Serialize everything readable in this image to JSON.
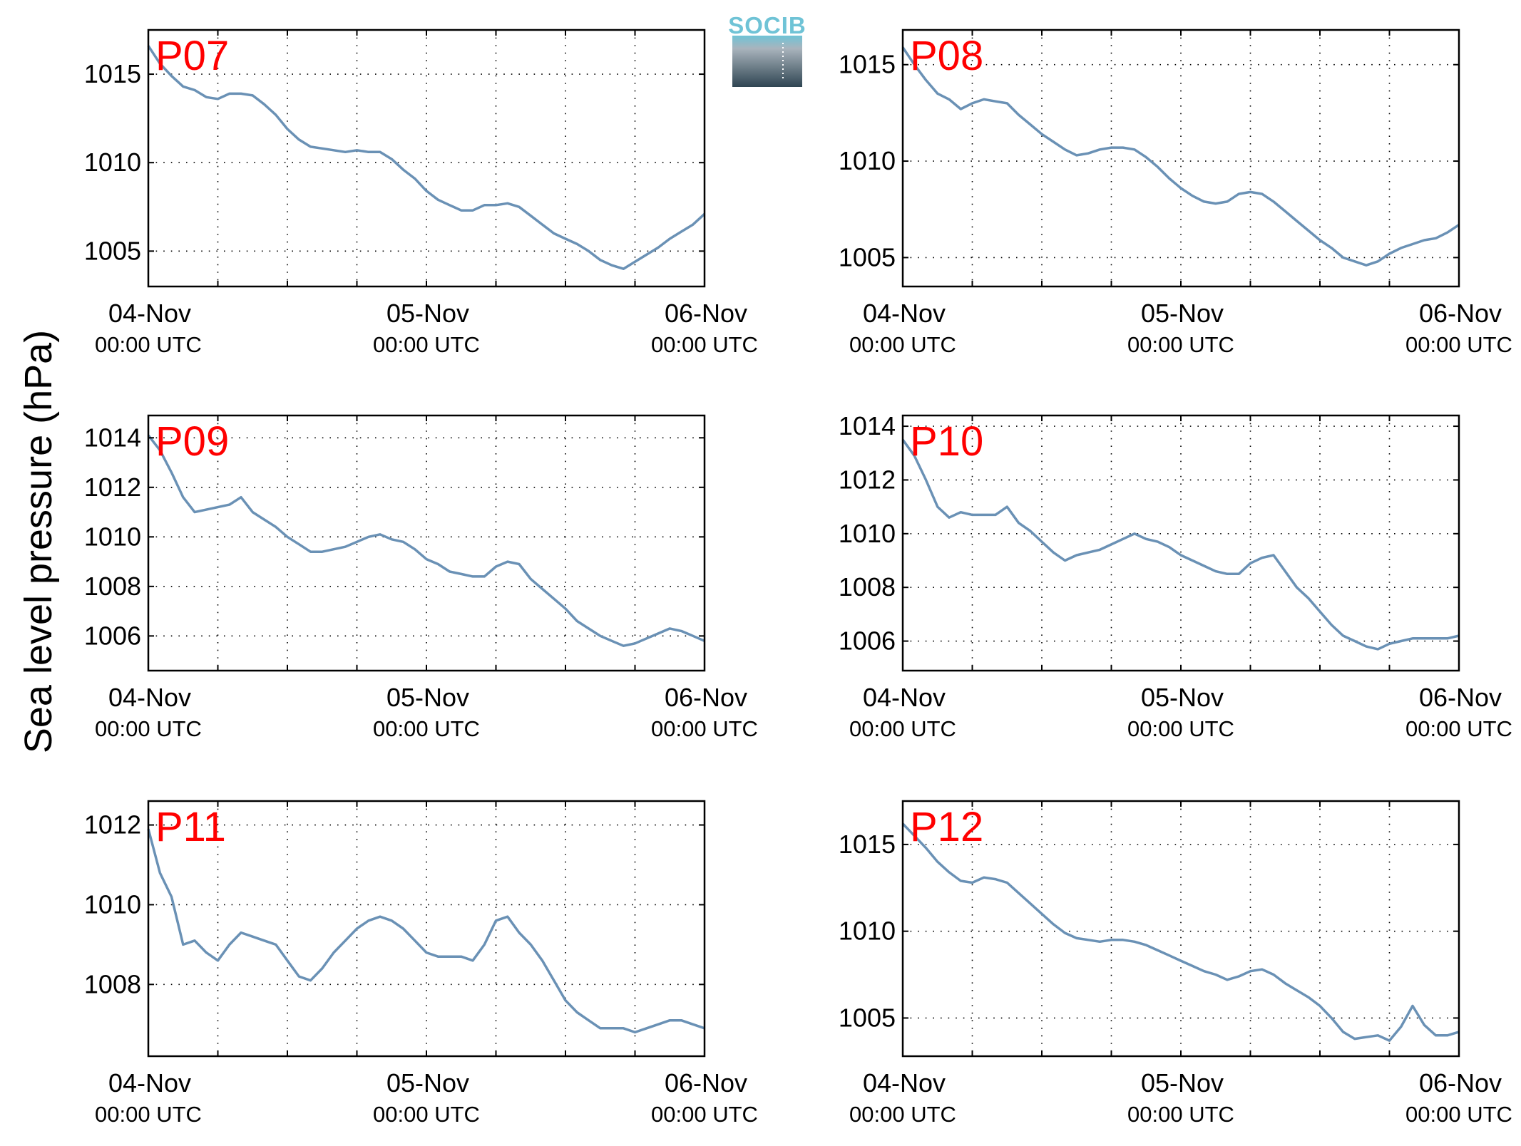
{
  "figure": {
    "ylabel": "Sea level pressure (hPa)",
    "logo_text": "SOCIB",
    "colors": {
      "line": "#6a91b5",
      "panel_label": "#ff0000",
      "axes": "#000000",
      "grid": "#000000"
    }
  },
  "chart_data": [
    {
      "type": "line",
      "title": "P07",
      "x_ticks": [
        {
          "main": "04-Nov",
          "sub": "00:00 UTC"
        },
        {
          "main": "05-Nov",
          "sub": "00:00 UTC"
        },
        {
          "main": "06-Nov",
          "sub": "00:00 UTC"
        }
      ],
      "xlim": [
        0,
        48
      ],
      "ylim": [
        1003,
        1017.5
      ],
      "yticks": [
        1005,
        1010,
        1015
      ],
      "grid": true,
      "x": [
        0,
        1,
        2,
        3,
        4,
        5,
        6,
        7,
        8,
        9,
        10,
        11,
        12,
        13,
        14,
        15,
        16,
        17,
        18,
        19,
        20,
        21,
        22,
        23,
        24,
        25,
        26,
        27,
        28,
        29,
        30,
        31,
        32,
        33,
        34,
        35,
        36,
        37,
        38,
        39,
        40,
        41,
        42,
        43,
        44,
        45,
        46,
        47,
        48
      ],
      "values": [
        1016.6,
        1015.6,
        1014.9,
        1014.3,
        1014.1,
        1013.7,
        1013.6,
        1013.9,
        1013.9,
        1013.8,
        1013.3,
        1012.7,
        1011.9,
        1011.3,
        1010.9,
        1010.8,
        1010.7,
        1010.6,
        1010.7,
        1010.6,
        1010.6,
        1010.2,
        1009.6,
        1009.1,
        1008.4,
        1007.9,
        1007.6,
        1007.3,
        1007.3,
        1007.6,
        1007.6,
        1007.7,
        1007.5,
        1007.0,
        1006.5,
        1006.0,
        1005.7,
        1005.4,
        1005.0,
        1004.5,
        1004.2,
        1004.0,
        1004.4,
        1004.8,
        1005.2,
        1005.7,
        1006.1,
        1006.5,
        1007.1
      ]
    },
    {
      "type": "line",
      "title": "P08",
      "x_ticks": [
        {
          "main": "04-Nov",
          "sub": "00:00 UTC"
        },
        {
          "main": "05-Nov",
          "sub": "00:00 UTC"
        },
        {
          "main": "06-Nov",
          "sub": "00:00 UTC"
        }
      ],
      "xlim": [
        0,
        48
      ],
      "ylim": [
        1003.5,
        1016.8
      ],
      "yticks": [
        1005,
        1010,
        1015
      ],
      "grid": true,
      "x": [
        0,
        1,
        2,
        3,
        4,
        5,
        6,
        7,
        8,
        9,
        10,
        11,
        12,
        13,
        14,
        15,
        16,
        17,
        18,
        19,
        20,
        21,
        22,
        23,
        24,
        25,
        26,
        27,
        28,
        29,
        30,
        31,
        32,
        33,
        34,
        35,
        36,
        37,
        38,
        39,
        40,
        41,
        42,
        43,
        44,
        45,
        46,
        47,
        48
      ],
      "values": [
        1015.9,
        1015.0,
        1014.2,
        1013.5,
        1013.2,
        1012.7,
        1013.0,
        1013.2,
        1013.1,
        1013.0,
        1012.4,
        1011.9,
        1011.4,
        1011.0,
        1010.6,
        1010.3,
        1010.4,
        1010.6,
        1010.7,
        1010.7,
        1010.6,
        1010.2,
        1009.7,
        1009.1,
        1008.6,
        1008.2,
        1007.9,
        1007.8,
        1007.9,
        1008.3,
        1008.4,
        1008.3,
        1007.9,
        1007.4,
        1006.9,
        1006.4,
        1005.9,
        1005.5,
        1005.0,
        1004.8,
        1004.6,
        1004.8,
        1005.2,
        1005.5,
        1005.7,
        1005.9,
        1006.0,
        1006.3,
        1006.7
      ]
    },
    {
      "type": "line",
      "title": "P09",
      "x_ticks": [
        {
          "main": "04-Nov",
          "sub": "00:00 UTC"
        },
        {
          "main": "05-Nov",
          "sub": "00:00 UTC"
        },
        {
          "main": "06-Nov",
          "sub": "00:00 UTC"
        }
      ],
      "xlim": [
        0,
        48
      ],
      "ylim": [
        1004.6,
        1014.9
      ],
      "yticks": [
        1006,
        1008,
        1010,
        1012,
        1014
      ],
      "grid": true,
      "x": [
        0,
        1,
        2,
        3,
        4,
        5,
        6,
        7,
        8,
        9,
        10,
        11,
        12,
        13,
        14,
        15,
        16,
        17,
        18,
        19,
        20,
        21,
        22,
        23,
        24,
        25,
        26,
        27,
        28,
        29,
        30,
        31,
        32,
        33,
        34,
        35,
        36,
        37,
        38,
        39,
        40,
        41,
        42,
        43,
        44,
        45,
        46,
        47,
        48
      ],
      "values": [
        1014.1,
        1013.5,
        1012.6,
        1011.6,
        1011.0,
        1011.1,
        1011.2,
        1011.3,
        1011.6,
        1011.0,
        1010.7,
        1010.4,
        1010.0,
        1009.7,
        1009.4,
        1009.4,
        1009.5,
        1009.6,
        1009.8,
        1010.0,
        1010.1,
        1009.9,
        1009.8,
        1009.5,
        1009.1,
        1008.9,
        1008.6,
        1008.5,
        1008.4,
        1008.4,
        1008.8,
        1009.0,
        1008.9,
        1008.3,
        1007.9,
        1007.5,
        1007.1,
        1006.6,
        1006.3,
        1006.0,
        1005.8,
        1005.6,
        1005.7,
        1005.9,
        1006.1,
        1006.3,
        1006.2,
        1006.0,
        1005.8
      ]
    },
    {
      "type": "line",
      "title": "P10",
      "x_ticks": [
        {
          "main": "04-Nov",
          "sub": "00:00 UTC"
        },
        {
          "main": "05-Nov",
          "sub": "00:00 UTC"
        },
        {
          "main": "06-Nov",
          "sub": "00:00 UTC"
        }
      ],
      "xlim": [
        0,
        48
      ],
      "ylim": [
        1004.9,
        1014.4
      ],
      "yticks": [
        1006,
        1008,
        1010,
        1012,
        1014
      ],
      "grid": true,
      "x": [
        0,
        1,
        2,
        3,
        4,
        5,
        6,
        7,
        8,
        9,
        10,
        11,
        12,
        13,
        14,
        15,
        16,
        17,
        18,
        19,
        20,
        21,
        22,
        23,
        24,
        25,
        26,
        27,
        28,
        29,
        30,
        31,
        32,
        33,
        34,
        35,
        36,
        37,
        38,
        39,
        40,
        41,
        42,
        43,
        44,
        45,
        46,
        47,
        48
      ],
      "values": [
        1013.5,
        1012.9,
        1012.0,
        1011.0,
        1010.6,
        1010.8,
        1010.7,
        1010.7,
        1010.7,
        1011.0,
        1010.4,
        1010.1,
        1009.7,
        1009.3,
        1009.0,
        1009.2,
        1009.3,
        1009.4,
        1009.6,
        1009.8,
        1010.0,
        1009.8,
        1009.7,
        1009.5,
        1009.2,
        1009.0,
        1008.8,
        1008.6,
        1008.5,
        1008.5,
        1008.9,
        1009.1,
        1009.2,
        1008.6,
        1008.0,
        1007.6,
        1007.1,
        1006.6,
        1006.2,
        1006.0,
        1005.8,
        1005.7,
        1005.9,
        1006.0,
        1006.1,
        1006.1,
        1006.1,
        1006.1,
        1006.2
      ]
    },
    {
      "type": "line",
      "title": "P11",
      "x_ticks": [
        {
          "main": "04-Nov",
          "sub": "00:00 UTC"
        },
        {
          "main": "05-Nov",
          "sub": "00:00 UTC"
        },
        {
          "main": "06-Nov",
          "sub": "00:00 UTC"
        }
      ],
      "xlim": [
        0,
        48
      ],
      "ylim": [
        1006.2,
        1012.6
      ],
      "yticks": [
        1008,
        1010,
        1012
      ],
      "grid": true,
      "x": [
        0,
        1,
        2,
        3,
        4,
        5,
        6,
        7,
        8,
        9,
        10,
        11,
        12,
        13,
        14,
        15,
        16,
        17,
        18,
        19,
        20,
        21,
        22,
        23,
        24,
        25,
        26,
        27,
        28,
        29,
        30,
        31,
        32,
        33,
        34,
        35,
        36,
        37,
        38,
        39,
        40,
        41,
        42,
        43,
        44,
        45,
        46,
        47,
        48
      ],
      "values": [
        1011.9,
        1010.8,
        1010.2,
        1009.0,
        1009.1,
        1008.8,
        1008.6,
        1009.0,
        1009.3,
        1009.2,
        1009.1,
        1009.0,
        1008.6,
        1008.2,
        1008.1,
        1008.4,
        1008.8,
        1009.1,
        1009.4,
        1009.6,
        1009.7,
        1009.6,
        1009.4,
        1009.1,
        1008.8,
        1008.7,
        1008.7,
        1008.7,
        1008.6,
        1009.0,
        1009.6,
        1009.7,
        1009.3,
        1009.0,
        1008.6,
        1008.1,
        1007.6,
        1007.3,
        1007.1,
        1006.9,
        1006.9,
        1006.9,
        1006.8,
        1006.9,
        1007.0,
        1007.1,
        1007.1,
        1007.0,
        1006.9
      ]
    },
    {
      "type": "line",
      "title": "P12",
      "x_ticks": [
        {
          "main": "04-Nov",
          "sub": "00:00 UTC"
        },
        {
          "main": "05-Nov",
          "sub": "00:00 UTC"
        },
        {
          "main": "06-Nov",
          "sub": "00:00 UTC"
        }
      ],
      "xlim": [
        0,
        48
      ],
      "ylim": [
        1002.8,
        1017.5
      ],
      "yticks": [
        1005,
        1010,
        1015
      ],
      "grid": true,
      "x": [
        0,
        1,
        2,
        3,
        4,
        5,
        6,
        7,
        8,
        9,
        10,
        11,
        12,
        13,
        14,
        15,
        16,
        17,
        18,
        19,
        20,
        21,
        22,
        23,
        24,
        25,
        26,
        27,
        28,
        29,
        30,
        31,
        32,
        33,
        34,
        35,
        36,
        37,
        38,
        39,
        40,
        41,
        42,
        43,
        44,
        45,
        46,
        47,
        48
      ],
      "values": [
        1016.2,
        1015.5,
        1014.8,
        1014.0,
        1013.4,
        1012.9,
        1012.8,
        1013.1,
        1013.0,
        1012.8,
        1012.2,
        1011.6,
        1011.0,
        1010.4,
        1009.9,
        1009.6,
        1009.5,
        1009.4,
        1009.5,
        1009.5,
        1009.4,
        1009.2,
        1008.9,
        1008.6,
        1008.3,
        1008.0,
        1007.7,
        1007.5,
        1007.2,
        1007.4,
        1007.7,
        1007.8,
        1007.5,
        1007.0,
        1006.6,
        1006.2,
        1005.7,
        1005.0,
        1004.2,
        1003.8,
        1003.9,
        1004.0,
        1003.7,
        1004.5,
        1005.7,
        1004.6,
        1004.0,
        1004.0,
        1004.2
      ]
    }
  ]
}
